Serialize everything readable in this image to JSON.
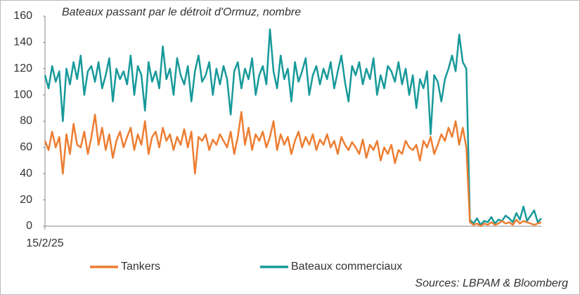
{
  "chart_data": {
    "type": "line",
    "title": "Bateaux passant par le détroit d'Ormuz, nombre",
    "source": "Sources: LBPAM & Bloomberg",
    "categories": [
      "15/2/25",
      null,
      null,
      null,
      null,
      null,
      null,
      null,
      null,
      null,
      null,
      null,
      null,
      null,
      null,
      null,
      null,
      null,
      null,
      null,
      null,
      null,
      null,
      null,
      null,
      null,
      null,
      null,
      null,
      null,
      null,
      null,
      null,
      null,
      null,
      null,
      null,
      null,
      null,
      null,
      null,
      null,
      null,
      null,
      null,
      null,
      null,
      null,
      null,
      null,
      null,
      null,
      null,
      null,
      null,
      null,
      null,
      null,
      null,
      null,
      null,
      null,
      null,
      null,
      null,
      null,
      null,
      null,
      null,
      null,
      null,
      null,
      null,
      null,
      null,
      null,
      null,
      null,
      null,
      null,
      null,
      null,
      null,
      null,
      null,
      null,
      null,
      null,
      null,
      null,
      null,
      null,
      null,
      null,
      null,
      null,
      null,
      null,
      null,
      null,
      null,
      null,
      null,
      null,
      null,
      null,
      null,
      null,
      null,
      null,
      null,
      null,
      null,
      null,
      null,
      null,
      null,
      null,
      null,
      null,
      null,
      null,
      null,
      null,
      null,
      null,
      null,
      null,
      null,
      null,
      null,
      null,
      null,
      null,
      null,
      null,
      null,
      null,
      null,
      null
    ],
    "series": [
      {
        "name": "Tankers",
        "color": "#ed7d31",
        "values": [
          65,
          58,
          72,
          60,
          68,
          40,
          70,
          55,
          78,
          62,
          60,
          72,
          55,
          68,
          85,
          62,
          75,
          58,
          70,
          52,
          65,
          72,
          60,
          68,
          75,
          58,
          70,
          62,
          80,
          55,
          68,
          72,
          60,
          75,
          65,
          70,
          58,
          68,
          62,
          74,
          60,
          72,
          40,
          68,
          65,
          70,
          58,
          66,
          62,
          70,
          65,
          60,
          72,
          55,
          68,
          87,
          62,
          75,
          58,
          70,
          65,
          72,
          60,
          68,
          80,
          58,
          70,
          62,
          68,
          55,
          65,
          72,
          60,
          68,
          62,
          70,
          58,
          66,
          62,
          70,
          60,
          65,
          55,
          68,
          62,
          58,
          64,
          60,
          55,
          66,
          52,
          62,
          58,
          65,
          50,
          60,
          55,
          62,
          48,
          58,
          55,
          65,
          60,
          58,
          62,
          50,
          65,
          60,
          68,
          55,
          62,
          70,
          65,
          75,
          68,
          80,
          62,
          75,
          60,
          3,
          1,
          2,
          0,
          2,
          1,
          3,
          1,
          2,
          4,
          2,
          3,
          1,
          5,
          2,
          4,
          3,
          2,
          1,
          2,
          3
        ]
      },
      {
        "name": "Bateaux commerciaux",
        "color": "#17999a",
        "values": [
          115,
          105,
          122,
          110,
          118,
          80,
          120,
          108,
          125,
          112,
          130,
          100,
          118,
          122,
          110,
          125,
          105,
          115,
          128,
          95,
          120,
          112,
          118,
          108,
          130,
          100,
          122,
          115,
          88,
          125,
          110,
          118,
          105,
          137,
          112,
          120,
          100,
          128,
          115,
          108,
          122,
          95,
          118,
          130,
          110,
          115,
          125,
          100,
          120,
          108,
          122,
          112,
          85,
          118,
          125,
          105,
          120,
          112,
          128,
          100,
          115,
          122,
          108,
          150,
          118,
          105,
          130,
          112,
          120,
          95,
          125,
          110,
          118,
          128,
          100,
          115,
          122,
          108,
          120,
          112,
          125,
          105,
          118,
          130,
          110,
          95,
          122,
          115,
          125,
          108,
          120,
          112,
          128,
          100,
          115,
          105,
          122,
          118,
          110,
          125,
          108,
          120,
          100,
          115,
          90,
          112,
          105,
          118,
          70,
          115,
          110,
          95,
          112,
          120,
          130,
          118,
          146,
          125,
          120,
          5,
          2,
          6,
          1,
          4,
          3,
          7,
          2,
          5,
          4,
          8,
          6,
          3,
          10,
          5,
          15,
          4,
          8,
          12,
          3,
          6
        ]
      }
    ],
    "ylim": [
      0,
      160
    ],
    "yticks": [
      0,
      20,
      40,
      60,
      80,
      100,
      120,
      140,
      160
    ],
    "grid": false
  }
}
